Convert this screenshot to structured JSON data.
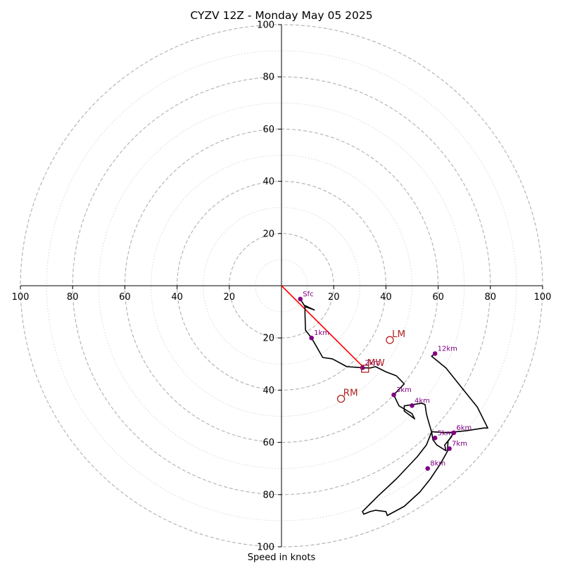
{
  "chart_data": {
    "type": "hodograph",
    "title": "CYZV 12Z - Monday May 05 2025",
    "xlabel": "Speed in knots",
    "rings_major": [
      20,
      40,
      60,
      80,
      100
    ],
    "rings_minor": [
      10,
      30,
      50,
      70,
      90
    ],
    "xlim": [
      -100,
      100
    ],
    "ylim": [
      -100,
      100
    ],
    "tick_labels": [
      "20",
      "40",
      "60",
      "80",
      "100"
    ],
    "colors": {
      "profile": "#000000",
      "height_marker": "#800080",
      "mean_wind_line": "#ff0000",
      "motion_marker": "#b22222",
      "ring": "#b0b0b0"
    },
    "profile": [
      [
        7.2,
        -5.1
      ],
      [
        9.0,
        -8.0
      ],
      [
        11.5,
        -8.9
      ],
      [
        12.6,
        -9.3
      ],
      [
        9.0,
        -7.6
      ],
      [
        9.0,
        -11.0
      ],
      [
        9.2,
        -17.0
      ],
      [
        11.5,
        -20.0
      ],
      [
        15.8,
        -27.5
      ],
      [
        19.5,
        -28.0
      ],
      [
        25.0,
        -31.0
      ],
      [
        31.0,
        -31.4
      ],
      [
        34.0,
        -31.5
      ],
      [
        36.0,
        -31.0
      ],
      [
        40.0,
        -33.0
      ],
      [
        44.0,
        -34.5
      ],
      [
        47.0,
        -37.6
      ],
      [
        43.0,
        -41.8
      ],
      [
        45.0,
        -46.0
      ],
      [
        50.0,
        -49.0
      ],
      [
        51.0,
        -51.0
      ],
      [
        47.0,
        -48.0
      ],
      [
        47.0,
        -46.0
      ],
      [
        50.5,
        -45.5
      ],
      [
        53.5,
        -45.0
      ],
      [
        55.0,
        -45.5
      ],
      [
        55.5,
        -49.0
      ],
      [
        56.0,
        -51.0
      ],
      [
        57.5,
        -56.0
      ],
      [
        58.0,
        -59.0
      ],
      [
        59.5,
        -61.0
      ],
      [
        63.0,
        -63.2
      ],
      [
        62.5,
        -61.0
      ],
      [
        65.0,
        -58.0
      ],
      [
        66.0,
        -56.0
      ],
      [
        71.0,
        -55.5
      ],
      [
        77.5,
        -54.5
      ],
      [
        79.0,
        -54.5
      ],
      [
        75.0,
        -46.5
      ],
      [
        69.0,
        -39.0
      ],
      [
        63.0,
        -31.5
      ],
      [
        57.5,
        -27.0
      ],
      [
        58.8,
        -26.0
      ]
    ],
    "profile_lower": [
      [
        57.5,
        -55.9
      ],
      [
        63.5,
        -56.3
      ],
      [
        66.0,
        -56.3
      ],
      [
        63.8,
        -59.5
      ],
      [
        63.5,
        -63.5
      ],
      [
        61.0,
        -68.0
      ],
      [
        57.0,
        -74.0
      ],
      [
        53.0,
        -79.0
      ],
      [
        47.0,
        -84.5
      ],
      [
        40.5,
        -88.0
      ],
      [
        40.0,
        -86.5
      ],
      [
        36.0,
        -86.0
      ],
      [
        34.0,
        -86.5
      ],
      [
        31.5,
        -87.5
      ],
      [
        31.0,
        -86.5
      ],
      [
        37.0,
        -80.5
      ],
      [
        44.0,
        -74.0
      ],
      [
        52.0,
        -65.5
      ],
      [
        55.5,
        -61.0
      ],
      [
        57.5,
        -56.0
      ]
    ],
    "heights": [
      {
        "label": "Sfc",
        "u": 7.2,
        "v": -5.1
      },
      {
        "label": "1km",
        "u": 11.5,
        "v": -20.0
      },
      {
        "label": "2km",
        "u": 31.0,
        "v": -31.4
      },
      {
        "label": "3km",
        "u": 43.0,
        "v": -41.8
      },
      {
        "label": "4km",
        "u": 50.0,
        "v": -45.9
      },
      {
        "label": "5km",
        "u": 58.8,
        "v": -58.3
      },
      {
        "label": "6km",
        "u": 66.0,
        "v": -56.3
      },
      {
        "label": "7km",
        "u": 64.3,
        "v": -62.4
      },
      {
        "label": "8km",
        "u": 56.0,
        "v": -70.0
      },
      {
        "label": "12km",
        "u": 58.8,
        "v": -26.0
      }
    ],
    "storm_motion": [
      {
        "label": "LM",
        "u": 41.5,
        "v": -20.8,
        "marker": "circle"
      },
      {
        "label": "MW",
        "u": 32.0,
        "v": -31.8,
        "marker": "square"
      },
      {
        "label": "RM",
        "u": 22.8,
        "v": -43.3,
        "marker": "circle"
      }
    ],
    "mean_wind_line": {
      "from": [
        0,
        0
      ],
      "to": [
        32.0,
        -31.8
      ]
    }
  }
}
